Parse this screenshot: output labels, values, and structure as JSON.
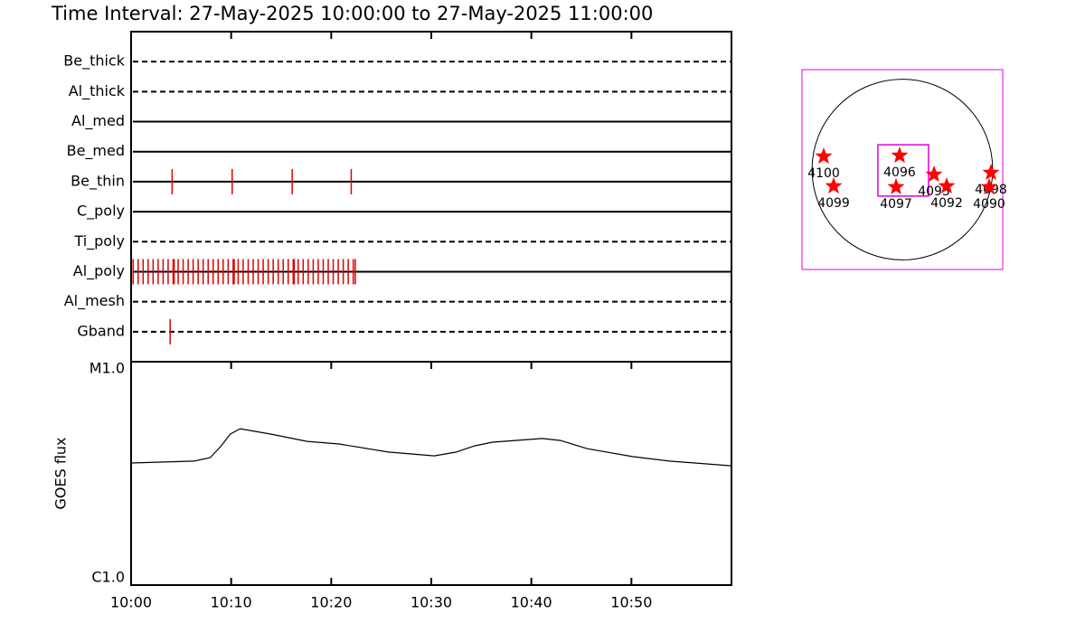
{
  "title": "Time Interval: 27-May-2025 10:00:00 to 27-May-2025 11:00:00",
  "chart_data": [
    {
      "type": "event",
      "event_color": "#e00000",
      "xlim": [
        0,
        60
      ],
      "xticks": [
        {
          "value": 0,
          "label": "10:00"
        },
        {
          "value": 10,
          "label": "10:10"
        },
        {
          "value": 20,
          "label": "10:20"
        },
        {
          "value": 30,
          "label": "10:30"
        },
        {
          "value": 40,
          "label": "10:40"
        },
        {
          "value": 50,
          "label": "10:50"
        }
      ],
      "rows": [
        {
          "name": "Be_thick",
          "style": "dashed",
          "events": []
        },
        {
          "name": "Al_thick",
          "style": "dashed",
          "events": []
        },
        {
          "name": "Al_med",
          "style": "solid",
          "events": []
        },
        {
          "name": "Be_med",
          "style": "solid",
          "events": []
        },
        {
          "name": "Be_thin",
          "style": "solid",
          "events": [
            4.1,
            10.1,
            16.1,
            22.0
          ]
        },
        {
          "name": "C_poly",
          "style": "solid",
          "events": []
        },
        {
          "name": "Ti_poly",
          "style": "dashed",
          "events": []
        },
        {
          "name": "Al_poly",
          "style": "solid",
          "events": [
            0.2,
            0.7,
            1.2,
            1.7,
            2.2,
            2.7,
            3.2,
            3.7,
            4.2,
            4.3,
            4.7,
            5.2,
            5.7,
            6.2,
            6.7,
            7.2,
            7.7,
            8.2,
            8.7,
            9.2,
            9.7,
            10.2,
            10.3,
            10.7,
            11.2,
            11.7,
            12.2,
            12.7,
            13.2,
            13.7,
            14.2,
            14.7,
            15.2,
            15.7,
            16.2,
            16.3,
            16.7,
            17.2,
            17.7,
            18.2,
            18.7,
            19.2,
            19.7,
            20.2,
            20.7,
            21.2,
            21.7,
            22.2,
            22.4
          ]
        },
        {
          "name": "Al_mesh",
          "style": "dashed",
          "events": []
        },
        {
          "name": "Gband",
          "style": "dashed",
          "events": [
            3.9
          ]
        }
      ]
    },
    {
      "type": "line",
      "ylabel": "GOES flux",
      "log_scale": true,
      "color": "#000000",
      "xlim": [
        0,
        60
      ],
      "ylim": [
        1e-06,
        1e-05
      ],
      "yticks": [
        {
          "value": 1e-06,
          "label": "C1.0"
        },
        {
          "value": 1e-05,
          "label": "M1.0"
        }
      ],
      "xticks": [
        {
          "value": 0,
          "label": "10:00"
        },
        {
          "value": 10,
          "label": "10:10"
        },
        {
          "value": 20,
          "label": "10:20"
        },
        {
          "value": 30,
          "label": "10:30"
        },
        {
          "value": 40,
          "label": "10:40"
        },
        {
          "value": 50,
          "label": "10:50"
        }
      ],
      "x": [
        0,
        6.3,
        7.9,
        9.0,
        9.9,
        10.9,
        14.0,
        17.6,
        20.8,
        25.7,
        30.3,
        32.5,
        34.3,
        36.1,
        41.1,
        42.9,
        45.6,
        50.1,
        53.8,
        60
      ],
      "values": [
        3.52e-06,
        3.59e-06,
        3.72e-06,
        4.2e-06,
        4.74e-06,
        5.01e-06,
        4.74e-06,
        4.4e-06,
        4.28e-06,
        3.94e-06,
        3.79e-06,
        3.94e-06,
        4.2e-06,
        4.36e-06,
        4.53e-06,
        4.44e-06,
        4.08e-06,
        3.76e-06,
        3.59e-06,
        3.42e-06
      ]
    },
    {
      "type": "map",
      "xlim": [
        -1100,
        1100
      ],
      "ylim": [
        -1100,
        1100
      ],
      "solar_radius": 990,
      "box_color": "#e000e0",
      "star_color": "#ff0000",
      "fov": {
        "x": [
          -268,
          287
        ],
        "y": [
          -292,
          273
        ]
      },
      "regions": [
        {
          "label": "4100",
          "x": -862,
          "y": 144
        },
        {
          "label": "4099",
          "x": -753,
          "y": -183
        },
        {
          "label": "4096",
          "x": -30,
          "y": 154
        },
        {
          "label": "4097",
          "x": -69,
          "y": -193
        },
        {
          "label": "4093",
          "x": 347,
          "y": -55
        },
        {
          "label": "4092",
          "x": 486,
          "y": -183
        },
        {
          "label": "4098",
          "x": 971,
          "y": -35
        },
        {
          "label": "4090",
          "x": 951,
          "y": -193
        }
      ]
    }
  ]
}
